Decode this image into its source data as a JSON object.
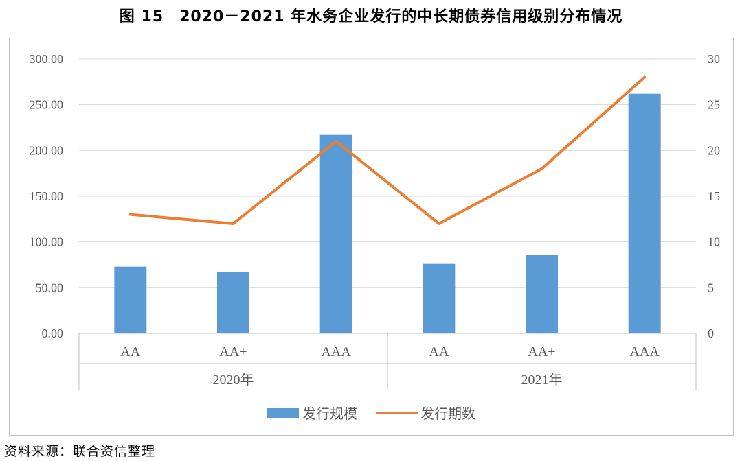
{
  "title": "图 15　2020－2021 年水务企业发行的中长期债券信用级别分布情况",
  "source": "资料来源：联合资信整理",
  "chart_data": {
    "type": "bar+line",
    "groups": [
      {
        "label": "2020年",
        "categories": [
          "AA",
          "AA+",
          "AAA"
        ]
      },
      {
        "label": "2021年",
        "categories": [
          "AA",
          "AA+",
          "AAA"
        ]
      }
    ],
    "series": [
      {
        "name": "发行规模",
        "type": "bar",
        "axis": "left",
        "color": "#5b9bd5",
        "values": [
          73,
          67,
          217,
          76,
          86,
          262
        ]
      },
      {
        "name": "发行期数",
        "type": "line",
        "axis": "right",
        "color": "#ed7d31",
        "values": [
          13,
          12,
          21,
          12,
          18,
          28
        ]
      }
    ],
    "y_left": {
      "min": 0,
      "max": 300,
      "ticks": [
        "0.00",
        "50.00",
        "100.00",
        "150.00",
        "200.00",
        "250.00",
        "300.00"
      ]
    },
    "y_right": {
      "min": 0,
      "max": 30,
      "ticks": [
        "0",
        "5",
        "10",
        "15",
        "20",
        "25",
        "30"
      ]
    },
    "grid": true,
    "legend_position": "bottom"
  }
}
